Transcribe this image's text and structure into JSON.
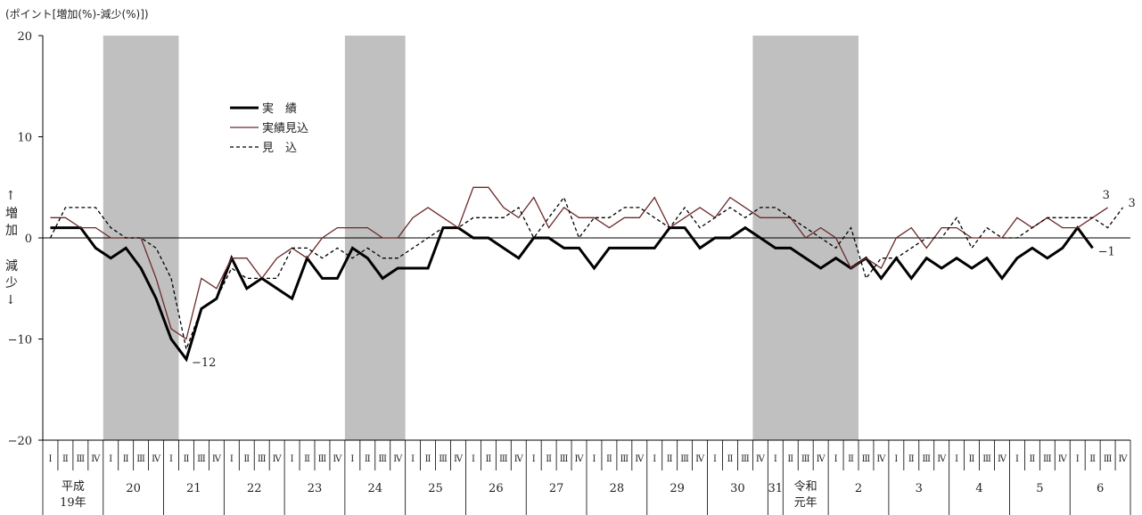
{
  "chart_data": {
    "type": "line",
    "ylabel": "(ポイント[増加(%)-減少(%)])",
    "y_side_up": "↑",
    "y_side_label_top": [
      "増",
      "加"
    ],
    "y_side_label_bottom": [
      "減",
      "少"
    ],
    "y_side_down": "↓",
    "ylim": [
      -20,
      20
    ],
    "yticks": [
      20,
      10,
      0,
      -10,
      -20
    ],
    "yticklabels": [
      "20",
      "10",
      "0",
      "−10",
      "−20"
    ],
    "grid": false,
    "legend_position": "top-center",
    "quarter_labels": [
      "Ⅰ",
      "Ⅱ",
      "Ⅲ",
      "Ⅳ"
    ],
    "quarters_x": [
      "H19-I",
      "H19-II",
      "H19-III",
      "H19-IV",
      "H20-I",
      "H20-II",
      "H20-III",
      "H20-IV",
      "H21-I",
      "H21-II",
      "H21-III",
      "H21-IV",
      "H22-I",
      "H22-II",
      "H22-III",
      "H22-IV",
      "H23-I",
      "H23-II",
      "H23-III",
      "H23-IV",
      "H24-I",
      "H24-II",
      "H24-III",
      "H24-IV",
      "H25-I",
      "H25-II",
      "H25-III",
      "H25-IV",
      "H26-I",
      "H26-II",
      "H26-III",
      "H26-IV",
      "H27-I",
      "H27-II",
      "H27-III",
      "H27-IV",
      "H28-I",
      "H28-II",
      "H28-III",
      "H28-IV",
      "H29-I",
      "H29-II",
      "H29-III",
      "H29-IV",
      "H30-I",
      "H30-II",
      "H30-III",
      "H30-IV",
      "H31-I",
      "R1-II",
      "R1-III",
      "R1-IV",
      "R2-I",
      "R2-II",
      "R2-III",
      "R2-IV",
      "R3-I",
      "R3-II",
      "R3-III",
      "R3-IV",
      "R4-I",
      "R4-II",
      "R4-III",
      "R4-IV",
      "R5-I",
      "R5-II",
      "R5-III",
      "R5-IV",
      "R6-I",
      "R6-II",
      "R6-III",
      "R6-IV"
    ],
    "year_groups": [
      {
        "label": [
          "平成",
          "19年"
        ],
        "start": 0,
        "count": 4
      },
      {
        "label": [
          "20"
        ],
        "start": 4,
        "count": 4
      },
      {
        "label": [
          "21"
        ],
        "start": 8,
        "count": 4
      },
      {
        "label": [
          "22"
        ],
        "start": 12,
        "count": 4
      },
      {
        "label": [
          "23"
        ],
        "start": 16,
        "count": 4
      },
      {
        "label": [
          "24"
        ],
        "start": 20,
        "count": 4
      },
      {
        "label": [
          "25"
        ],
        "start": 24,
        "count": 4
      },
      {
        "label": [
          "26"
        ],
        "start": 28,
        "count": 4
      },
      {
        "label": [
          "27"
        ],
        "start": 32,
        "count": 4
      },
      {
        "label": [
          "28"
        ],
        "start": 36,
        "count": 4
      },
      {
        "label": [
          "29"
        ],
        "start": 40,
        "count": 4
      },
      {
        "label": [
          "30"
        ],
        "start": 44,
        "count": 4
      },
      {
        "label": [
          "31"
        ],
        "start": 48,
        "count": 1
      },
      {
        "label": [
          "令和",
          "元年"
        ],
        "start": 49,
        "count": 3
      },
      {
        "label": [
          "2"
        ],
        "start": 52,
        "count": 4
      },
      {
        "label": [
          "3"
        ],
        "start": 56,
        "count": 4
      },
      {
        "label": [
          "4"
        ],
        "start": 60,
        "count": 4
      },
      {
        "label": [
          "5"
        ],
        "start": 64,
        "count": 4
      },
      {
        "label": [
          "6"
        ],
        "start": 68,
        "count": 4
      }
    ],
    "shaded_periods": [
      {
        "from_index": 3.5,
        "to_index": 8.5
      },
      {
        "from_index": 19.5,
        "to_index": 23.5
      },
      {
        "from_index": 46.5,
        "to_index": 53.5
      }
    ],
    "shade_color": "#c0c0c0",
    "series": [
      {
        "name": "実　績",
        "color": "#000000",
        "style": "solid-thick",
        "values": [
          1,
          1,
          1,
          -1,
          -2,
          -1,
          -3,
          -6,
          -10,
          -12,
          -7,
          -6,
          -2,
          -5,
          -4,
          -5,
          -6,
          -2,
          -4,
          -4,
          -1,
          -2,
          -4,
          -3,
          -3,
          -3,
          1,
          1,
          0,
          0,
          -1,
          -2,
          0,
          0,
          -1,
          -1,
          -3,
          -1,
          -1,
          -1,
          -1,
          1,
          1,
          -1,
          0,
          0,
          1,
          0,
          -1,
          -1,
          -2,
          -3,
          -2,
          -3,
          -2,
          -4,
          -2,
          -4,
          -2,
          -3,
          -2,
          -3,
          -2,
          -4,
          -2,
          -1,
          -2,
          -1,
          1,
          -1
        ]
      },
      {
        "name": "実績見込",
        "color": "#6b2a2a",
        "style": "solid-thin",
        "values": [
          2,
          2,
          1,
          1,
          0,
          0,
          0,
          -4,
          -9,
          -10,
          -4,
          -5,
          -2,
          -2,
          -4,
          -2,
          -1,
          -2,
          0,
          1,
          1,
          1,
          0,
          0,
          2,
          3,
          2,
          1,
          5,
          5,
          3,
          2,
          4,
          1,
          3,
          2,
          2,
          1,
          2,
          2,
          4,
          1,
          2,
          3,
          2,
          4,
          3,
          2,
          2,
          2,
          0,
          1,
          0,
          -3,
          -2,
          -3,
          0,
          1,
          -1,
          1,
          1,
          0,
          0,
          0,
          2,
          1,
          2,
          1,
          1,
          2,
          3
        ]
      },
      {
        "name": "見　込",
        "color": "#000000",
        "style": "dashed",
        "values": [
          0,
          3,
          3,
          3,
          1,
          0,
          0,
          -1,
          -4,
          -11,
          -7,
          -6,
          -3,
          -4,
          -4,
          -4,
          -1,
          -1,
          -2,
          -1,
          -2,
          -1,
          -2,
          -2,
          -1,
          0,
          1,
          1,
          2,
          2,
          2,
          3,
          0,
          2,
          4,
          0,
          2,
          2,
          3,
          3,
          2,
          1,
          3,
          1,
          2,
          3,
          2,
          3,
          3,
          2,
          1,
          0,
          -1,
          1,
          -4,
          -2,
          -2,
          -1,
          0,
          0,
          2,
          -1,
          1,
          0,
          0,
          1,
          2,
          2,
          2,
          2,
          1,
          3
        ]
      }
    ],
    "annotations": [
      {
        "text": "−12",
        "series": 0,
        "index": 9
      },
      {
        "text": "−1",
        "series": 0,
        "index": 69
      },
      {
        "text": "3",
        "series": 1,
        "index": 70
      },
      {
        "text": "3",
        "series": 2,
        "index": 71
      }
    ]
  }
}
